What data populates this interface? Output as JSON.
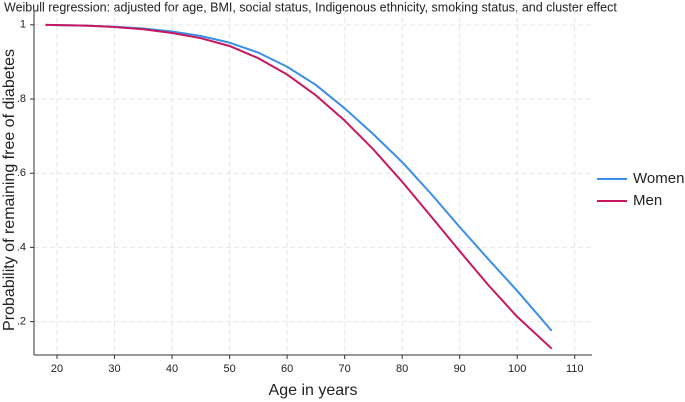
{
  "chart_data": {
    "type": "line",
    "title": "Weibull regression: adjusted for age, BMI, social status, Indigenous ethnicity, smoking status, and cluster effect",
    "x_label": "Age in years",
    "y_label": "Probability of remaining free of diabetes",
    "x": [
      18,
      25,
      30,
      35,
      40,
      45,
      50,
      55,
      60,
      65,
      70,
      75,
      80,
      85,
      90,
      95,
      100,
      106
    ],
    "series": [
      {
        "name": "Women",
        "color": "#3b8ee8",
        "values": [
          1.0,
          0.998,
          0.995,
          0.99,
          0.982,
          0.97,
          0.952,
          0.925,
          0.887,
          0.838,
          0.775,
          0.705,
          0.63,
          0.545,
          0.455,
          0.368,
          0.283,
          0.175
        ]
      },
      {
        "name": "Men",
        "color": "#c8175f",
        "values": [
          1.0,
          0.998,
          0.994,
          0.988,
          0.978,
          0.964,
          0.943,
          0.91,
          0.866,
          0.81,
          0.742,
          0.664,
          0.577,
          0.484,
          0.39,
          0.298,
          0.213,
          0.127
        ]
      }
    ],
    "xlim": [
      16,
      113
    ],
    "ylim": [
      0.11,
      1.04
    ],
    "xticks": [
      20,
      30,
      40,
      50,
      60,
      70,
      80,
      90,
      100,
      110
    ],
    "yticks": [
      1,
      {
        "value": 0.8,
        "label": ".8"
      },
      {
        "value": 0.6,
        "label": ".6"
      },
      {
        "value": 0.4,
        "label": ".4"
      },
      {
        "value": 0.2,
        "label": ".2"
      }
    ],
    "grid": true,
    "legend": "right"
  }
}
